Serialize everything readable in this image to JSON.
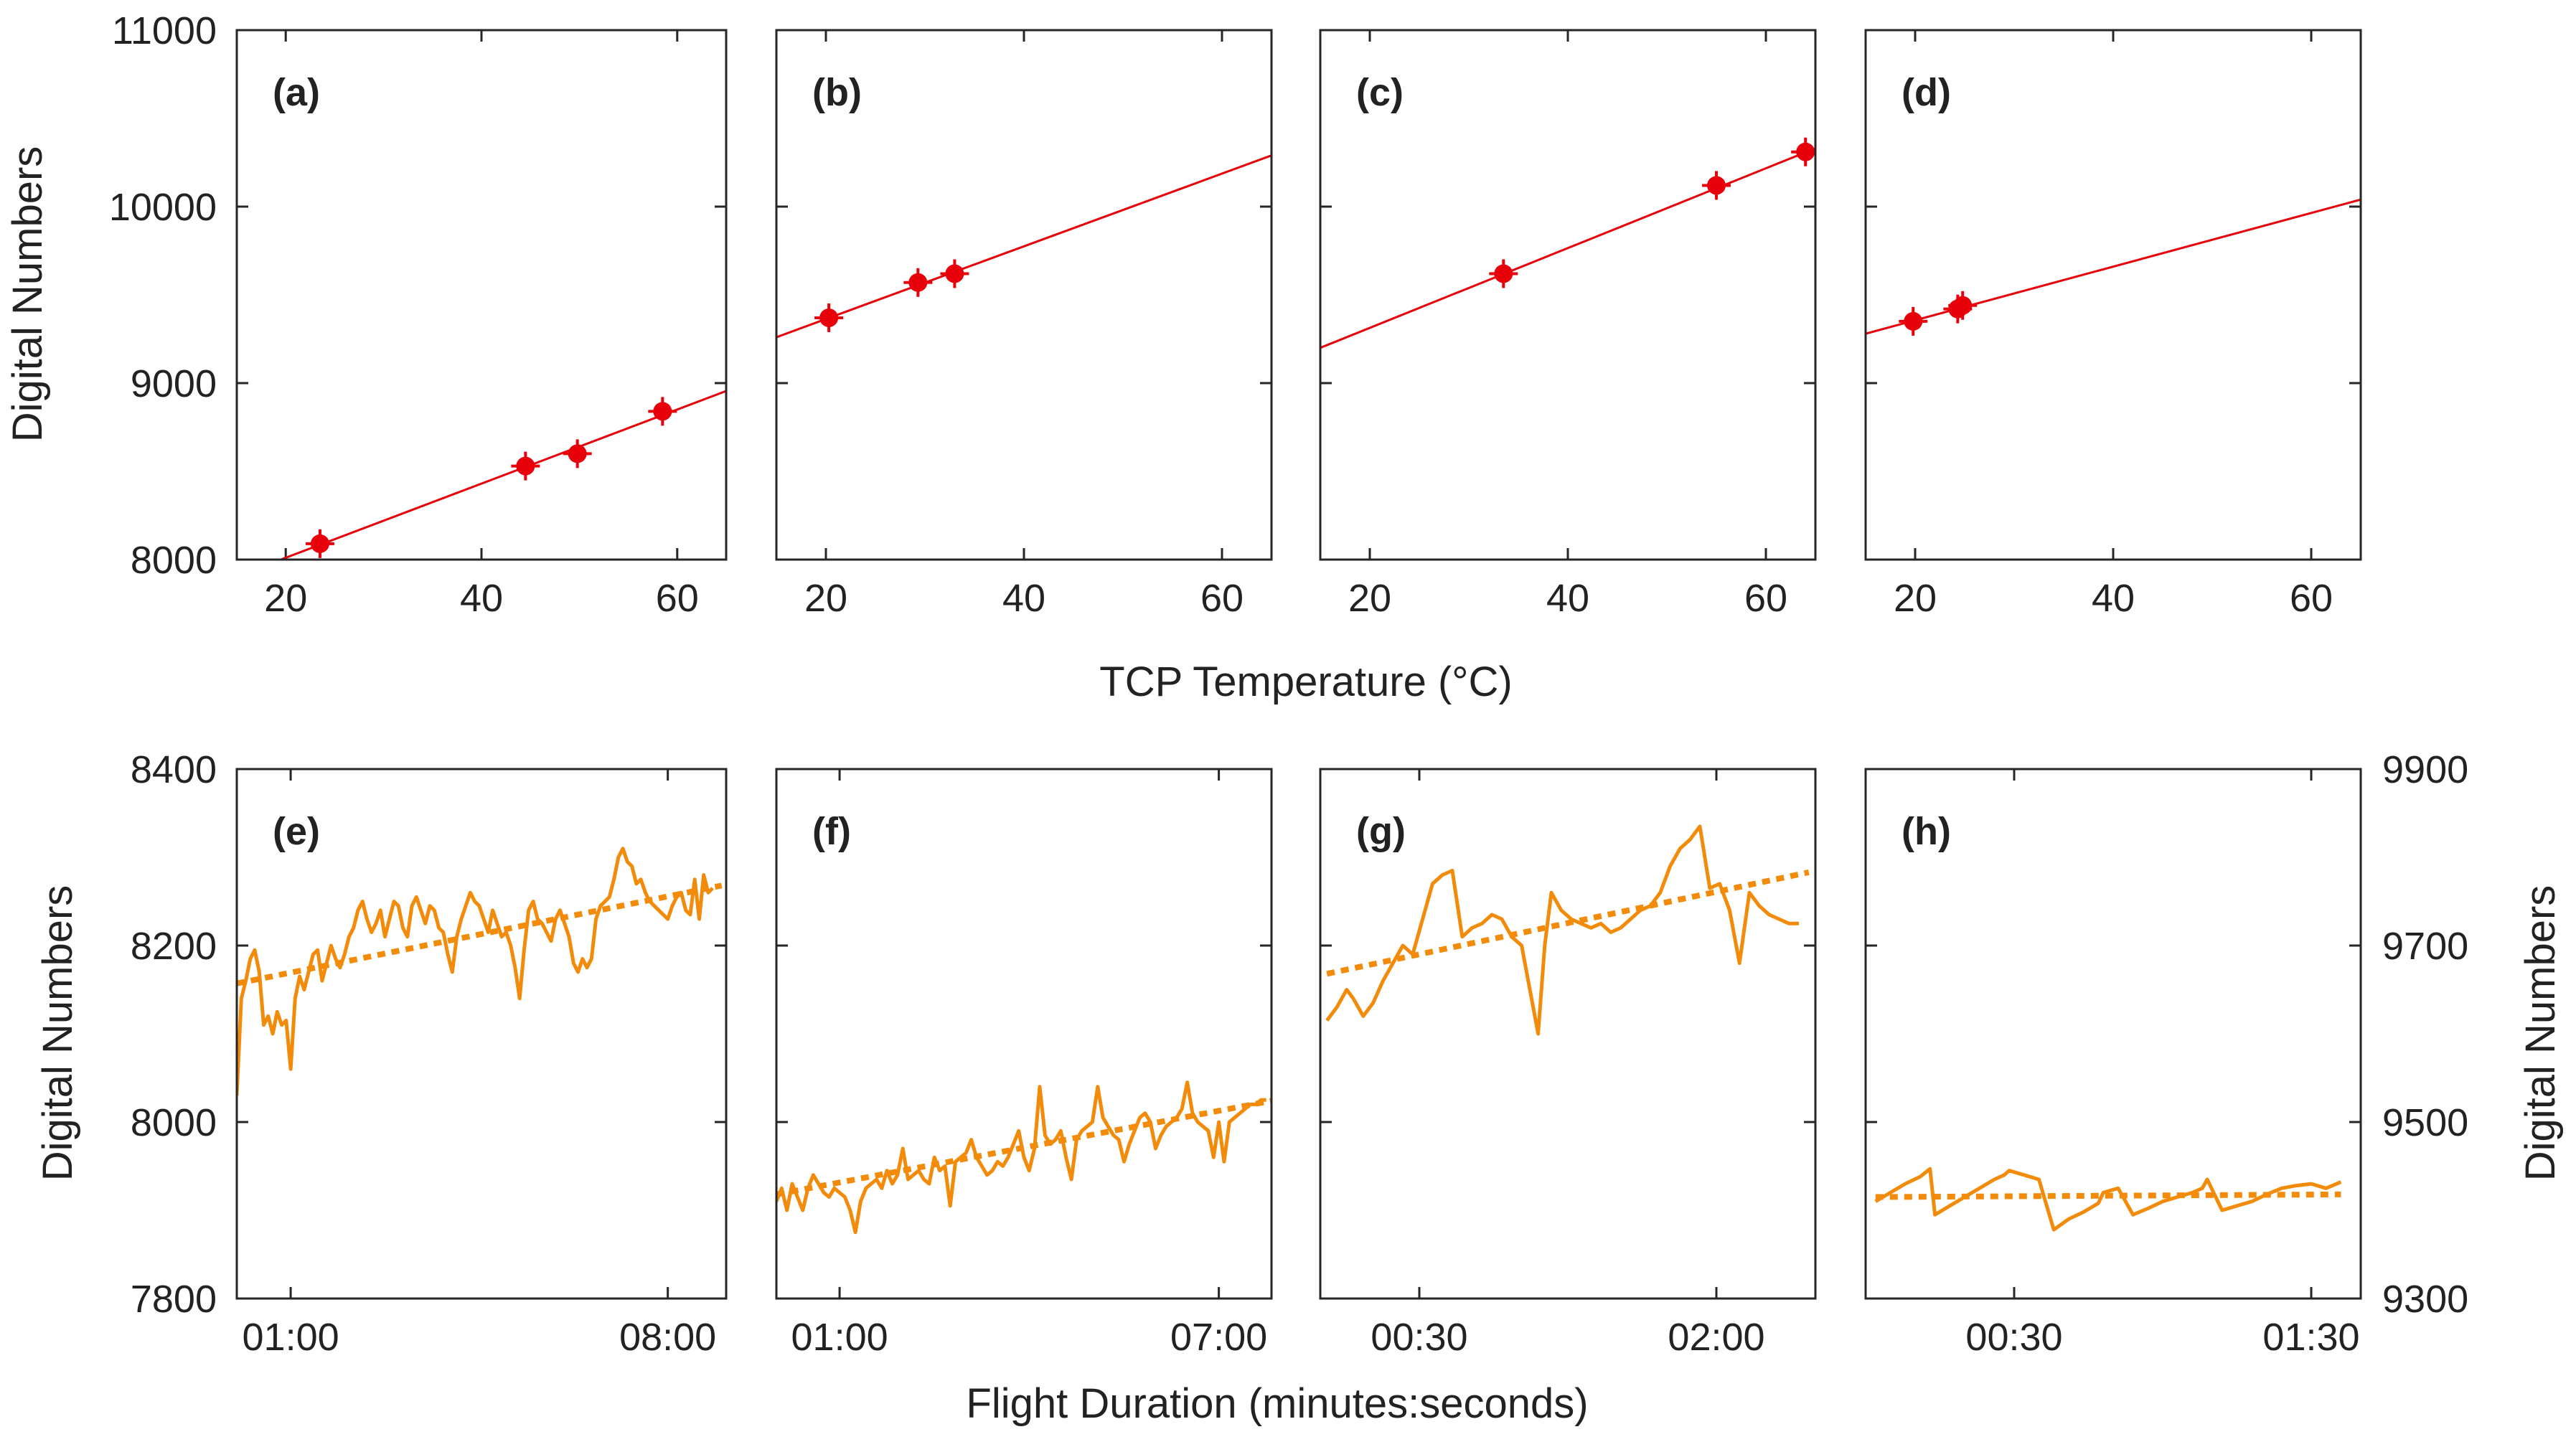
{
  "colors": {
    "fit_line": "#e8000b",
    "scatter": "#e8000b",
    "timeseries": "#f28a0a",
    "axis": "#262626",
    "text": "#222222"
  },
  "shared": {
    "top_ylabel": "Digital Numbers",
    "top_xlabel": "TCP Temperature (°C)",
    "bottom_ylabel_left": "Digital Numbers",
    "bottom_ylabel_right": "Digital Numbers",
    "bottom_xlabel": "Flight Duration (minutes:seconds)"
  },
  "chart_data": [
    {
      "id": "a",
      "tag": "(a)",
      "type": "scatter",
      "xlim": [
        15,
        65
      ],
      "ylim": [
        8000,
        11000
      ],
      "xticks": [
        20,
        40,
        60
      ],
      "yticks": [
        8000,
        9000,
        10000,
        11000
      ],
      "ytick_labels": [
        "8000",
        "9000",
        "10000",
        "11000"
      ],
      "points": [
        {
          "x": 23.5,
          "y": 8090
        },
        {
          "x": 44.5,
          "y": 8530
        },
        {
          "x": 49.8,
          "y": 8600
        },
        {
          "x": 58.5,
          "y": 8840
        }
      ],
      "fit": {
        "x": [
          19.5,
          65
        ],
        "y": [
          8000,
          8955
        ]
      }
    },
    {
      "id": "b",
      "tag": "(b)",
      "type": "scatter",
      "xlim": [
        15,
        65
      ],
      "ylim": [
        8000,
        11000
      ],
      "xticks": [
        20,
        40,
        60
      ],
      "yticks": [
        8000,
        9000,
        10000,
        11000
      ],
      "points": [
        {
          "x": 20.3,
          "y": 9370
        },
        {
          "x": 29.3,
          "y": 9570
        },
        {
          "x": 33.0,
          "y": 9620
        }
      ],
      "fit": {
        "x": [
          15,
          65
        ],
        "y": [
          9260,
          10290
        ]
      }
    },
    {
      "id": "c",
      "tag": "(c)",
      "type": "scatter",
      "xlim": [
        15,
        65
      ],
      "ylim": [
        8000,
        11000
      ],
      "xticks": [
        20,
        40,
        60
      ],
      "yticks": [
        8000,
        9000,
        10000,
        11000
      ],
      "points": [
        {
          "x": 33.5,
          "y": 9620
        },
        {
          "x": 55.0,
          "y": 10120
        },
        {
          "x": 64.0,
          "y": 10310
        }
      ],
      "fit": {
        "x": [
          15,
          65
        ],
        "y": [
          9200,
          10330
        ]
      }
    },
    {
      "id": "d",
      "tag": "(d)",
      "type": "scatter",
      "xlim": [
        15,
        65
      ],
      "ylim": [
        8000,
        11000
      ],
      "xticks": [
        20,
        40,
        60
      ],
      "yticks": [
        8000,
        9000,
        10000,
        11000
      ],
      "points": [
        {
          "x": 19.8,
          "y": 9350
        },
        {
          "x": 24.3,
          "y": 9420
        },
        {
          "x": 24.8,
          "y": 9440
        }
      ],
      "fit": {
        "x": [
          15,
          65
        ],
        "y": [
          9280,
          10040
        ]
      }
    },
    {
      "id": "e",
      "tag": "(e)",
      "type": "line",
      "yaxis": "left",
      "xlim": [
        0,
        545
      ],
      "ylim": [
        7800,
        8400
      ],
      "xticks": [
        60,
        480
      ],
      "xtick_labels": [
        "01:00",
        "08:00"
      ],
      "yticks": [
        7800,
        8000,
        8200,
        8400
      ],
      "ytick_labels": [
        "7800",
        "8000",
        "8200",
        "8400"
      ],
      "x": [
        0,
        5,
        10,
        15,
        20,
        25,
        30,
        35,
        40,
        45,
        50,
        55,
        60,
        65,
        70,
        75,
        80,
        85,
        90,
        95,
        100,
        105,
        110,
        115,
        120,
        125,
        130,
        135,
        140,
        145,
        150,
        155,
        160,
        165,
        170,
        175,
        180,
        185,
        190,
        195,
        200,
        205,
        210,
        215,
        220,
        225,
        230,
        235,
        240,
        245,
        250,
        255,
        260,
        265,
        270,
        275,
        280,
        285,
        290,
        295,
        300,
        305,
        310,
        315,
        320,
        325,
        330,
        335,
        340,
        345,
        350,
        355,
        360,
        365,
        370,
        375,
        380,
        385,
        390,
        395,
        400,
        405,
        410,
        415,
        420,
        425,
        430,
        435,
        440,
        445,
        450,
        455,
        460,
        465,
        470,
        475,
        480,
        485,
        490,
        495,
        500,
        505,
        510,
        515,
        520,
        525,
        530
      ],
      "y": [
        8030,
        8140,
        8160,
        8185,
        8195,
        8170,
        8110,
        8120,
        8100,
        8125,
        8110,
        8115,
        8060,
        8140,
        8165,
        8150,
        8170,
        8190,
        8195,
        8160,
        8180,
        8200,
        8185,
        8175,
        8190,
        8210,
        8220,
        8240,
        8250,
        8230,
        8215,
        8225,
        8240,
        8210,
        8230,
        8250,
        8245,
        8220,
        8210,
        8245,
        8255,
        8240,
        8225,
        8245,
        8240,
        8220,
        8215,
        8190,
        8170,
        8210,
        8230,
        8245,
        8260,
        8250,
        8245,
        8230,
        8215,
        8240,
        8225,
        8210,
        8215,
        8200,
        8175,
        8140,
        8195,
        8240,
        8250,
        8230,
        8225,
        8215,
        8205,
        8230,
        8240,
        8225,
        8210,
        8180,
        8170,
        8185,
        8175,
        8185,
        8230,
        8245,
        8250,
        8255,
        8275,
        8300,
        8310,
        8295,
        8290,
        8270,
        8275,
        8260,
        8250,
        8245,
        8240,
        8235,
        8230,
        8245,
        8255,
        8260,
        8240,
        8235,
        8275,
        8230,
        8280,
        8260,
        8265
      ],
      "trend": {
        "x": [
          0,
          540
        ],
        "y": [
          8157,
          8268
        ]
      }
    },
    {
      "id": "f",
      "tag": "(f)",
      "type": "line",
      "yaxis": "left",
      "xlim": [
        0,
        470
      ],
      "ylim": [
        7800,
        8400
      ],
      "xticks": [
        60,
        420
      ],
      "xtick_labels": [
        "01:00",
        "07:00"
      ],
      "yticks": [
        7800,
        8000,
        8200,
        8400
      ],
      "x": [
        0,
        5,
        10,
        15,
        20,
        25,
        30,
        35,
        40,
        45,
        50,
        55,
        60,
        65,
        70,
        75,
        80,
        85,
        90,
        95,
        100,
        105,
        110,
        115,
        120,
        125,
        130,
        135,
        140,
        145,
        150,
        155,
        160,
        165,
        170,
        175,
        180,
        185,
        190,
        195,
        200,
        205,
        210,
        215,
        220,
        225,
        230,
        235,
        240,
        245,
        250,
        255,
        260,
        265,
        270,
        275,
        280,
        285,
        290,
        295,
        300,
        305,
        310,
        315,
        320,
        325,
        330,
        335,
        340,
        345,
        350,
        355,
        360,
        365,
        370,
        375,
        380,
        385,
        390,
        395,
        400,
        405,
        410,
        415,
        420,
        425,
        430,
        435,
        440,
        445,
        450,
        455,
        460,
        465
      ],
      "y": [
        7910,
        7925,
        7900,
        7930,
        7915,
        7900,
        7925,
        7940,
        7930,
        7920,
        7915,
        7925,
        7920,
        7915,
        7900,
        7875,
        7910,
        7925,
        7930,
        7935,
        7925,
        7945,
        7930,
        7940,
        7970,
        7935,
        7940,
        7945,
        7935,
        7930,
        7960,
        7945,
        7950,
        7905,
        7955,
        7960,
        7965,
        7980,
        7960,
        7950,
        7940,
        7945,
        7955,
        7950,
        7960,
        7975,
        7990,
        7960,
        7945,
        7970,
        8040,
        7985,
        7975,
        7980,
        7990,
        7960,
        7935,
        7980,
        7990,
        7995,
        8000,
        8040,
        8005,
        7995,
        7985,
        7980,
        7955,
        7975,
        7990,
        8005,
        8010,
        8000,
        7970,
        7985,
        7995,
        8000,
        8005,
        8015,
        8045,
        8010,
        8000,
        7995,
        7990,
        7960,
        8000,
        7955,
        8000,
        8005,
        8010,
        8015,
        8020,
        8020,
        8025,
        8025
      ],
      "trend": {
        "x": [
          0,
          470
        ],
        "y": [
          7918,
          8024
        ]
      }
    },
    {
      "id": "g",
      "tag": "(g)",
      "type": "line",
      "yaxis": "right",
      "xlim": [
        0,
        150
      ],
      "ylim": [
        9300,
        9900
      ],
      "xticks": [
        30,
        120
      ],
      "xtick_labels": [
        "00:30",
        "02:00"
      ],
      "yticks": [
        9300,
        9500,
        9700,
        9900
      ],
      "x": [
        2,
        5,
        8,
        10,
        13,
        16,
        19,
        22,
        25,
        28,
        31,
        34,
        37,
        40,
        43,
        46,
        49,
        52,
        55,
        58,
        61,
        64,
        66,
        68,
        70,
        73,
        76,
        79,
        82,
        85,
        88,
        91,
        94,
        97,
        100,
        103,
        106,
        109,
        112,
        115,
        118,
        121,
        124,
        127,
        130,
        133,
        136,
        139,
        142,
        145
      ],
      "y": [
        9615,
        9630,
        9650,
        9640,
        9620,
        9635,
        9660,
        9680,
        9700,
        9690,
        9730,
        9770,
        9780,
        9785,
        9710,
        9720,
        9725,
        9735,
        9730,
        9710,
        9700,
        9640,
        9600,
        9700,
        9760,
        9740,
        9730,
        9725,
        9720,
        9725,
        9715,
        9720,
        9730,
        9740,
        9745,
        9760,
        9790,
        9810,
        9820,
        9835,
        9765,
        9770,
        9740,
        9680,
        9760,
        9745,
        9735,
        9730,
        9725,
        9725
      ],
      "trend": {
        "x": [
          2,
          148
        ],
        "y": [
          9668,
          9783
        ]
      }
    },
    {
      "id": "h",
      "tag": "(h)",
      "type": "line",
      "yaxis": "right",
      "xlim": [
        0,
        100
      ],
      "ylim": [
        9300,
        9900
      ],
      "xticks": [
        30,
        90
      ],
      "xtick_labels": [
        "00:30",
        "01:30"
      ],
      "yticks": [
        9300,
        9500,
        9700,
        9900
      ],
      "ytick_labels": [
        "9300",
        "9500",
        "9700",
        "9900"
      ],
      "x": [
        2,
        5,
        8,
        11,
        13,
        14,
        17,
        20,
        23,
        26,
        28,
        29,
        32,
        35,
        38,
        41,
        44,
        47,
        48,
        51,
        54,
        57,
        60,
        63,
        66,
        68,
        69,
        72,
        75,
        78,
        81,
        84,
        87,
        90,
        93,
        96
      ],
      "y": [
        9410,
        9420,
        9430,
        9438,
        9447,
        9395,
        9405,
        9415,
        9425,
        9435,
        9440,
        9445,
        9440,
        9435,
        9378,
        9390,
        9398,
        9408,
        9420,
        9425,
        9395,
        9402,
        9410,
        9415,
        9420,
        9425,
        9435,
        9400,
        9405,
        9410,
        9418,
        9425,
        9428,
        9430,
        9425,
        9432
      ],
      "trend": {
        "x": [
          2,
          96
        ],
        "y": [
          9415,
          9418
        ]
      }
    }
  ]
}
